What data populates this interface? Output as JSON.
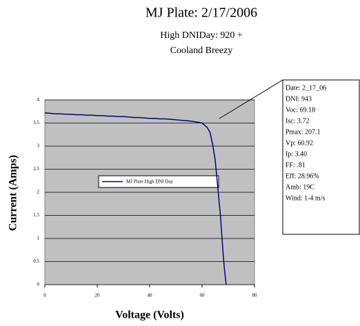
{
  "chart_data": {
    "type": "line",
    "title": "MJ Plate: 2/17/2006",
    "subtitle": [
      "High DNIDay: 920 +",
      "Cooland Breezy"
    ],
    "xlabel": "Voltage (Volts)",
    "ylabel": "Current (Amps)",
    "annotation": [
      "Date: 2_17_06",
      "DNI: 943",
      "Voc: 69.18",
      "Isc: 3.72",
      "Pmax: 207.1",
      "Vp: 60.92",
      "Ip: 3.40",
      "FF: .81",
      "Eff: 28.96%",
      "Amb: 19C",
      "Wind: 1-4 m/s"
    ],
    "x": [
      0,
      2,
      4,
      6,
      8,
      10,
      12,
      14,
      16,
      18,
      20,
      22,
      24,
      26,
      28,
      30,
      32,
      34,
      36,
      38,
      40,
      42,
      44,
      46,
      48,
      50,
      52,
      54,
      56,
      58,
      60,
      61,
      62,
      63,
      64,
      65,
      66,
      67,
      68,
      68.5,
      69,
      69.18
    ],
    "series": [
      {
        "name": "MJ Plate High DNI Day",
        "color": "#000080",
        "values": [
          3.72,
          3.71,
          3.7,
          3.7,
          3.69,
          3.69,
          3.68,
          3.68,
          3.67,
          3.67,
          3.66,
          3.66,
          3.65,
          3.65,
          3.64,
          3.64,
          3.63,
          3.62,
          3.62,
          3.61,
          3.6,
          3.6,
          3.59,
          3.59,
          3.58,
          3.57,
          3.56,
          3.55,
          3.54,
          3.52,
          3.5,
          3.45,
          3.4,
          3.3,
          3.05,
          2.7,
          2.1,
          1.5,
          0.7,
          0.35,
          0.1,
          0
        ]
      }
    ],
    "xlim": [
      0,
      80
    ],
    "xticks": [
      0,
      20,
      40,
      60,
      80
    ],
    "ylim": [
      0,
      4
    ],
    "yticks": [
      0,
      0.5,
      1,
      1.5,
      2,
      2.5,
      3,
      3.5,
      4
    ],
    "grid": true,
    "legend": "center-left"
  }
}
